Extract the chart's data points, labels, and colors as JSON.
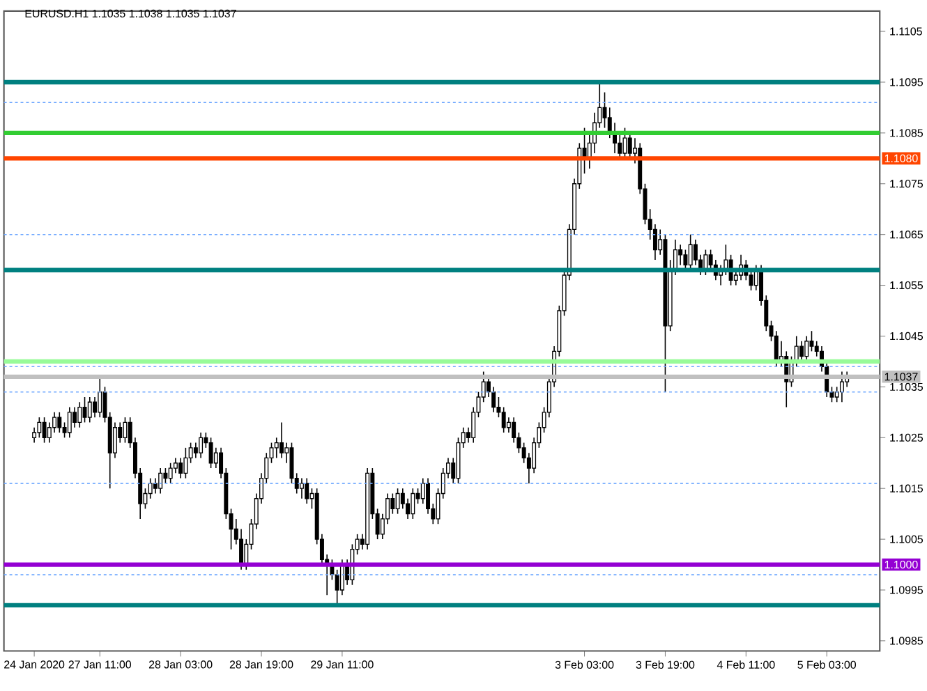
{
  "chart_data": {
    "type": "candlestick",
    "title": "EURUSD.H1  1.1035 1.1038 1.1035 1.1037",
    "categories": [
      "24 Jan 2020",
      null,
      null,
      null,
      null,
      null,
      null,
      null,
      null,
      null,
      null,
      null,
      null,
      "27 Jan 11:00",
      null,
      null,
      null,
      null,
      null,
      null,
      null,
      null,
      null,
      null,
      null,
      null,
      null,
      null,
      null,
      "28 Jan 03:00",
      null,
      null,
      null,
      null,
      null,
      null,
      null,
      null,
      null,
      null,
      null,
      null,
      null,
      null,
      null,
      "28 Jan 19:00",
      null,
      null,
      null,
      null,
      null,
      null,
      null,
      null,
      null,
      null,
      null,
      null,
      null,
      null,
      null,
      "29 Jan 11:00",
      null,
      null,
      null,
      null,
      null,
      null,
      null,
      null,
      null,
      null,
      null,
      null,
      null,
      null,
      null,
      null,
      null,
      null,
      null,
      null,
      null,
      null,
      null,
      null,
      null,
      null,
      null,
      null,
      null,
      null,
      null,
      null,
      null,
      null,
      null,
      null,
      null,
      null,
      null,
      null,
      null,
      null,
      null,
      null,
      null,
      null,
      null,
      "3 Feb 03:00",
      null,
      null,
      null,
      null,
      null,
      null,
      null,
      null,
      null,
      null,
      null,
      null,
      null,
      null,
      null,
      "3 Feb 19:00",
      null,
      null,
      null,
      null,
      null,
      null,
      null,
      null,
      null,
      null,
      null,
      null,
      null,
      null,
      null,
      "4 Feb 11:00",
      null,
      null,
      null,
      null,
      null,
      null,
      null,
      null,
      null,
      null,
      null,
      null,
      null,
      null,
      null,
      "5 Feb 03:00",
      null,
      null,
      null,
      null
    ],
    "ohlc": [
      [
        1.1025,
        1.1027,
        1.1024,
        1.1026
      ],
      [
        1.1026,
        1.1029,
        1.1025,
        1.1028
      ],
      [
        1.1028,
        1.1029,
        1.1024,
        1.1025
      ],
      [
        1.1025,
        1.1028,
        1.1024,
        1.1027
      ],
      [
        1.1027,
        1.103,
        1.1026,
        1.1029
      ],
      [
        1.1029,
        1.103,
        1.1026,
        1.1027
      ],
      [
        1.1027,
        1.1028,
        1.1025,
        1.1026
      ],
      [
        1.1026,
        1.1031,
        1.1025,
        1.103
      ],
      [
        1.103,
        1.1031,
        1.1027,
        1.1028
      ],
      [
        1.1028,
        1.1032,
        1.1027,
        1.1031
      ],
      [
        1.1031,
        1.1033,
        1.1028,
        1.1029
      ],
      [
        1.1029,
        1.1033,
        1.1028,
        1.1032
      ],
      [
        1.1032,
        1.1033,
        1.1029,
        1.103
      ],
      [
        1.103,
        1.1037,
        1.1029,
        1.1034
      ],
      [
        1.1034,
        1.1035,
        1.1028,
        1.1029
      ],
      [
        1.1029,
        1.103,
        1.1015,
        1.1022
      ],
      [
        1.1022,
        1.1028,
        1.1021,
        1.1027
      ],
      [
        1.1027,
        1.1028,
        1.1024,
        1.1025
      ],
      [
        1.1025,
        1.1029,
        1.1024,
        1.1028
      ],
      [
        1.1028,
        1.1029,
        1.1023,
        1.1024
      ],
      [
        1.1024,
        1.1025,
        1.1017,
        1.1018
      ],
      [
        1.1018,
        1.1019,
        1.1009,
        1.1012
      ],
      [
        1.1012,
        1.1015,
        1.1011,
        1.1014
      ],
      [
        1.1014,
        1.1017,
        1.1013,
        1.1016
      ],
      [
        1.1016,
        1.1017,
        1.1014,
        1.1015
      ],
      [
        1.1015,
        1.1019,
        1.1014,
        1.1018
      ],
      [
        1.1018,
        1.1019,
        1.1016,
        1.1017
      ],
      [
        1.1017,
        1.102,
        1.1016,
        1.1019
      ],
      [
        1.1019,
        1.1021,
        1.1018,
        1.102
      ],
      [
        1.102,
        1.1021,
        1.1017,
        1.1018
      ],
      [
        1.1018,
        1.1023,
        1.1017,
        1.1021
      ],
      [
        1.1021,
        1.1024,
        1.102,
        1.1023
      ],
      [
        1.1023,
        1.1024,
        1.1021,
        1.1022
      ],
      [
        1.1022,
        1.1026,
        1.1021,
        1.1025
      ],
      [
        1.1025,
        1.1026,
        1.1023,
        1.1024
      ],
      [
        1.1024,
        1.1025,
        1.1019,
        1.102
      ],
      [
        1.102,
        1.1023,
        1.1019,
        1.1022
      ],
      [
        1.1022,
        1.1023,
        1.1017,
        1.1018
      ],
      [
        1.1018,
        1.1019,
        1.1009,
        1.101
      ],
      [
        1.101,
        1.1011,
        1.1003,
        1.1007
      ],
      [
        1.1007,
        1.1009,
        1.1004,
        1.1005
      ],
      [
        1.1005,
        1.1007,
        1.0999,
        1.1
      ],
      [
        1.1,
        1.1005,
        1.0999,
        1.1004
      ],
      [
        1.1004,
        1.1009,
        1.1003,
        1.1008
      ],
      [
        1.1008,
        1.1014,
        1.1007,
        1.1013
      ],
      [
        1.1013,
        1.1018,
        1.1012,
        1.1017
      ],
      [
        1.1017,
        1.1022,
        1.1016,
        1.1021
      ],
      [
        1.1021,
        1.1024,
        1.102,
        1.1023
      ],
      [
        1.1023,
        1.1025,
        1.1021,
        1.1024
      ],
      [
        1.1024,
        1.1028,
        1.1021,
        1.1022
      ],
      [
        1.1022,
        1.1024,
        1.102,
        1.1023
      ],
      [
        1.1023,
        1.1024,
        1.1016,
        1.1017
      ],
      [
        1.1017,
        1.1018,
        1.1014,
        1.1015
      ],
      [
        1.1015,
        1.1017,
        1.1013,
        1.1016
      ],
      [
        1.1016,
        1.1017,
        1.1012,
        1.1013
      ],
      [
        1.1013,
        1.1015,
        1.1011,
        1.1014
      ],
      [
        1.1014,
        1.1015,
        1.1004,
        1.1005
      ],
      [
        1.1005,
        1.1006,
        1.1,
        1.1001
      ],
      [
        1.1001,
        1.1002,
        1.0994,
        1.1
      ],
      [
        1.1,
        1.1001,
        1.0997,
        1.0998
      ],
      [
        1.0998,
        1.0999,
        1.0992,
        1.0995
      ],
      [
        1.0995,
        1.1001,
        1.0994,
        1.1
      ],
      [
        1.1,
        1.1001,
        1.0996,
        1.0997
      ],
      [
        1.0997,
        1.1004,
        1.0996,
        1.1003
      ],
      [
        1.1003,
        1.1006,
        1.1002,
        1.1005
      ],
      [
        1.1005,
        1.1006,
        1.1003,
        1.1004
      ],
      [
        1.1004,
        1.1019,
        1.1003,
        1.1018
      ],
      [
        1.1018,
        1.1019,
        1.1009,
        1.101
      ],
      [
        1.101,
        1.1011,
        1.1005,
        1.1006
      ],
      [
        1.1006,
        1.101,
        1.1005,
        1.1009
      ],
      [
        1.1009,
        1.1014,
        1.1008,
        1.1013
      ],
      [
        1.1013,
        1.1014,
        1.101,
        1.1011
      ],
      [
        1.1011,
        1.1015,
        1.101,
        1.1014
      ],
      [
        1.1014,
        1.1015,
        1.1011,
        1.1012
      ],
      [
        1.1012,
        1.1013,
        1.1009,
        1.101
      ],
      [
        1.101,
        1.1015,
        1.1009,
        1.1014
      ],
      [
        1.1014,
        1.1015,
        1.1012,
        1.1013
      ],
      [
        1.1013,
        1.1017,
        1.1012,
        1.1016
      ],
      [
        1.1016,
        1.1017,
        1.101,
        1.1011
      ],
      [
        1.1011,
        1.1012,
        1.1008,
        1.1009
      ],
      [
        1.1009,
        1.1015,
        1.1008,
        1.1014
      ],
      [
        1.1014,
        1.1019,
        1.1013,
        1.1018
      ],
      [
        1.1018,
        1.1021,
        1.1017,
        1.102
      ],
      [
        1.102,
        1.1021,
        1.1016,
        1.1017
      ],
      [
        1.1017,
        1.1025,
        1.1016,
        1.1024
      ],
      [
        1.1024,
        1.1027,
        1.1023,
        1.1026
      ],
      [
        1.1026,
        1.1027,
        1.1024,
        1.1025
      ],
      [
        1.1025,
        1.1031,
        1.1024,
        1.103
      ],
      [
        1.103,
        1.1034,
        1.1029,
        1.1033
      ],
      [
        1.1033,
        1.1038,
        1.1032,
        1.1036
      ],
      [
        1.1036,
        1.1037,
        1.1033,
        1.1034
      ],
      [
        1.1034,
        1.1035,
        1.103,
        1.1031
      ],
      [
        1.1031,
        1.1033,
        1.1029,
        1.103
      ],
      [
        1.103,
        1.1031,
        1.1026,
        1.1027
      ],
      [
        1.1027,
        1.1029,
        1.1026,
        1.1028
      ],
      [
        1.1028,
        1.1029,
        1.1024,
        1.1025
      ],
      [
        1.1025,
        1.1026,
        1.1022,
        1.1023
      ],
      [
        1.1023,
        1.1024,
        1.102,
        1.1021
      ],
      [
        1.1021,
        1.1022,
        1.1016,
        1.1019
      ],
      [
        1.1019,
        1.1025,
        1.1018,
        1.1024
      ],
      [
        1.1024,
        1.1028,
        1.1023,
        1.1027
      ],
      [
        1.1027,
        1.1031,
        1.1026,
        1.103
      ],
      [
        1.103,
        1.1037,
        1.1029,
        1.1036
      ],
      [
        1.1036,
        1.1043,
        1.1035,
        1.1042
      ],
      [
        1.1042,
        1.1051,
        1.1041,
        1.105
      ],
      [
        1.105,
        1.1058,
        1.1049,
        1.1057
      ],
      [
        1.1057,
        1.1067,
        1.1056,
        1.1066
      ],
      [
        1.1066,
        1.1076,
        1.1065,
        1.1075
      ],
      [
        1.1075,
        1.1083,
        1.1074,
        1.1082
      ],
      [
        1.1082,
        1.1086,
        1.1077,
        1.108
      ],
      [
        1.108,
        1.1085,
        1.1078,
        1.1083
      ],
      [
        1.1083,
        1.1089,
        1.1081,
        1.1087
      ],
      [
        1.1087,
        1.1095,
        1.1086,
        1.109
      ],
      [
        1.109,
        1.1093,
        1.1086,
        1.1088
      ],
      [
        1.1088,
        1.109,
        1.1084,
        1.1085
      ],
      [
        1.1085,
        1.1087,
        1.1081,
        1.1083
      ],
      [
        1.1083,
        1.1085,
        1.108,
        1.1081
      ],
      [
        1.1081,
        1.1086,
        1.108,
        1.1084
      ],
      [
        1.1084,
        1.1085,
        1.108,
        1.1081
      ],
      [
        1.1081,
        1.1084,
        1.1079,
        1.1082
      ],
      [
        1.1082,
        1.1083,
        1.1073,
        1.1074
      ],
      [
        1.1074,
        1.1075,
        1.1067,
        1.1068
      ],
      [
        1.1068,
        1.107,
        1.1064,
        1.1066
      ],
      [
        1.1066,
        1.1067,
        1.106,
        1.1062
      ],
      [
        1.1062,
        1.1066,
        1.1061,
        1.1064
      ],
      [
        1.1064,
        1.1065,
        1.1034,
        1.1047
      ],
      [
        1.1047,
        1.106,
        1.1046,
        1.1058
      ],
      [
        1.1058,
        1.1064,
        1.1057,
        1.1062
      ],
      [
        1.1062,
        1.1063,
        1.1059,
        1.1061
      ],
      [
        1.1061,
        1.1062,
        1.1058,
        1.1059
      ],
      [
        1.1059,
        1.1065,
        1.1058,
        1.1063
      ],
      [
        1.1063,
        1.1064,
        1.1059,
        1.106
      ],
      [
        1.106,
        1.1061,
        1.1057,
        1.1058
      ],
      [
        1.1058,
        1.1062,
        1.1057,
        1.1061
      ],
      [
        1.1061,
        1.1062,
        1.1058,
        1.1059
      ],
      [
        1.1059,
        1.106,
        1.1056,
        1.1057
      ],
      [
        1.1057,
        1.1059,
        1.1055,
        1.1058
      ],
      [
        1.1058,
        1.1063,
        1.1057,
        1.106
      ],
      [
        1.106,
        1.1061,
        1.1055,
        1.1056
      ],
      [
        1.1056,
        1.1058,
        1.1055,
        1.1057
      ],
      [
        1.1057,
        1.1061,
        1.1056,
        1.1059
      ],
      [
        1.1059,
        1.106,
        1.1056,
        1.1057
      ],
      [
        1.1057,
        1.1058,
        1.1054,
        1.1055
      ],
      [
        1.1055,
        1.1059,
        1.1054,
        1.1058
      ],
      [
        1.1058,
        1.1059,
        1.1051,
        1.1052
      ],
      [
        1.1052,
        1.1053,
        1.1046,
        1.1047
      ],
      [
        1.1047,
        1.1048,
        1.1044,
        1.1045
      ],
      [
        1.1045,
        1.1046,
        1.1039,
        1.104
      ],
      [
        1.104,
        1.1044,
        1.1039,
        1.1041
      ],
      [
        1.1041,
        1.1042,
        1.1031,
        1.1036
      ],
      [
        1.1036,
        1.1041,
        1.1035,
        1.104
      ],
      [
        1.104,
        1.1045,
        1.1039,
        1.1043
      ],
      [
        1.1043,
        1.1044,
        1.104,
        1.1041
      ],
      [
        1.1041,
        1.1045,
        1.104,
        1.1044
      ],
      [
        1.1044,
        1.1046,
        1.1042,
        1.1043
      ],
      [
        1.1043,
        1.1044,
        1.1041,
        1.1042
      ],
      [
        1.1042,
        1.1043,
        1.1038,
        1.1039
      ],
      [
        1.1039,
        1.104,
        1.1033,
        1.1034
      ],
      [
        1.1034,
        1.1035,
        1.1032,
        1.1033
      ],
      [
        1.1033,
        1.1035,
        1.1032,
        1.1034
      ],
      [
        1.1034,
        1.1038,
        1.1032,
        1.1036
      ],
      [
        1.1036,
        1.1038,
        1.1035,
        1.1037
      ]
    ],
    "ylim": [
      1.0983,
      1.1109
    ],
    "yticks": [
      1.0985,
      1.0995,
      1.1005,
      1.1015,
      1.1025,
      1.1035,
      1.1045,
      1.1055,
      1.1065,
      1.1075,
      1.1085,
      1.1095,
      1.1105
    ],
    "ref_lines": [
      {
        "axis": "y",
        "value": 1.1095,
        "color": "#008080",
        "line_style": "solid"
      },
      {
        "axis": "y",
        "value": 1.1091,
        "color": "#6fa8ff",
        "line_style": "dotted"
      },
      {
        "axis": "y",
        "value": 1.1085,
        "color": "#32cd32",
        "line_style": "solid"
      },
      {
        "axis": "y",
        "value": 1.108,
        "color": "#ff4500",
        "line_style": "solid",
        "label": "1.1080"
      },
      {
        "axis": "y",
        "value": 1.1065,
        "color": "#6fa8ff",
        "line_style": "dotted"
      },
      {
        "axis": "y",
        "value": 1.1058,
        "color": "#008080",
        "line_style": "solid"
      },
      {
        "axis": "y",
        "value": 1.104,
        "color": "#98fb98",
        "line_style": "solid"
      },
      {
        "axis": "y",
        "value": 1.1039,
        "color": "#6fa8ff",
        "line_style": "dotted"
      },
      {
        "axis": "y",
        "value": 1.1037,
        "color": "#c0c0c0",
        "line_style": "solid",
        "label": "1.1037"
      },
      {
        "axis": "y",
        "value": 1.1034,
        "color": "#6fa8ff",
        "line_style": "dotted"
      },
      {
        "axis": "y",
        "value": 1.1016,
        "color": "#6fa8ff",
        "line_style": "dotted"
      },
      {
        "axis": "y",
        "value": 1.1,
        "color": "#9400d3",
        "line_style": "solid",
        "label": "1.1000"
      },
      {
        "axis": "y",
        "value": 1.0998,
        "color": "#6fa8ff",
        "line_style": "dotted"
      },
      {
        "axis": "y",
        "value": 1.0992,
        "color": "#008080",
        "line_style": "solid"
      }
    ]
  }
}
